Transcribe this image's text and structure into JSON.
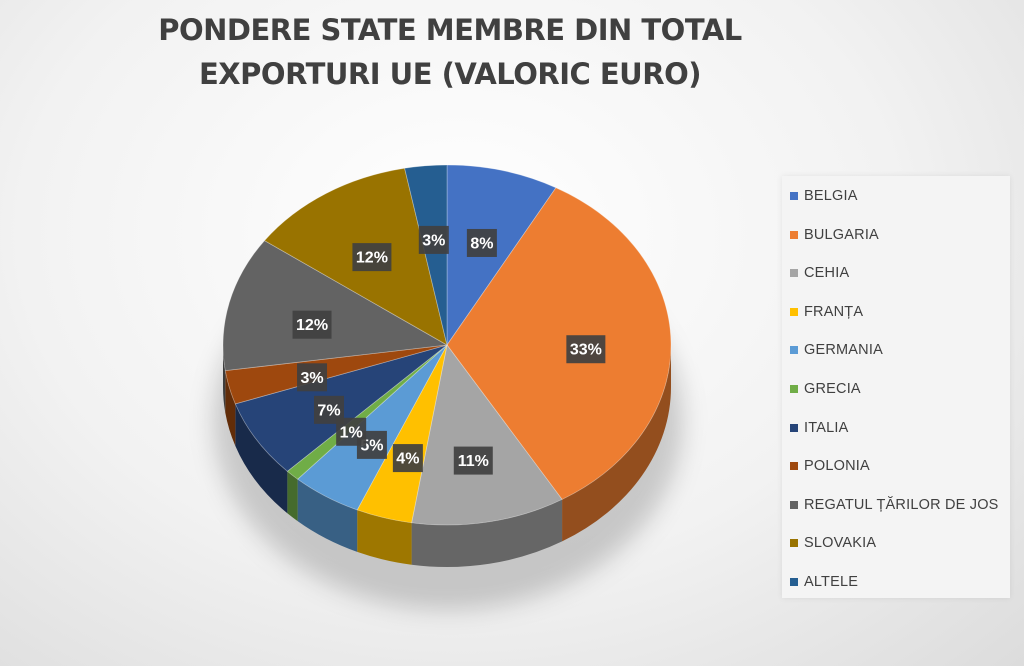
{
  "chart_data": {
    "type": "pie",
    "title": "PONDERE STATE MEMBRE DIN TOTAL EXPORTURI UE (VALORIC EURO)",
    "legend_position": "right",
    "labels": [
      "BELGIA",
      "BULGARIA",
      "CEHIA",
      "FRANȚA",
      "GERMANIA",
      "GRECIA",
      "ITALIA",
      "POLONIA",
      "REGATUL ȚĂRILOR DE JOS",
      "SLOVAKIA",
      "ALTELE"
    ],
    "values": [
      8,
      33,
      11,
      4,
      5,
      1,
      7,
      3,
      12,
      12,
      3
    ],
    "value_labels": [
      "8%",
      "33%",
      "11%",
      "4%",
      "5%",
      "1%",
      "7%",
      "3%",
      "12%",
      "12%",
      "3%"
    ],
    "colors": [
      "#4472C4",
      "#ED7D31",
      "#A5A5A5",
      "#FFC000",
      "#5B9BD5",
      "#70AD47",
      "#264478",
      "#9E480E",
      "#636363",
      "#997300",
      "#255E91"
    ]
  }
}
